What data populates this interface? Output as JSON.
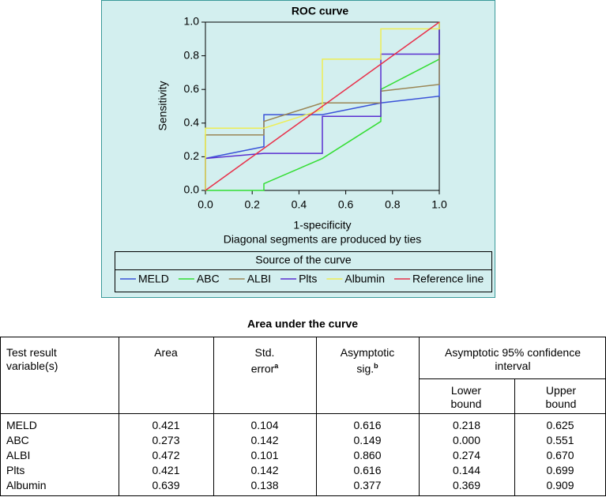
{
  "chart_data": {
    "type": "line",
    "title": "ROC curve",
    "x_label": "1-specificity",
    "y_label": "Sensitivity",
    "note": "Diagonal segments are produced by ties",
    "legend_title": "Source of the curve",
    "legend": "bottom",
    "xlim": [
      0,
      1
    ],
    "ylim": [
      0,
      1
    ],
    "xticks": [
      {
        "value": 0,
        "label": "0.0"
      },
      {
        "value": 0.2,
        "label": "0.2"
      },
      {
        "value": 0.4,
        "label": "0.4"
      },
      {
        "value": 0.6,
        "label": "0.6"
      },
      {
        "value": 0.8,
        "label": "0.8"
      },
      {
        "value": 1,
        "label": "1.0"
      }
    ],
    "yticks": [
      {
        "value": 0,
        "label": "0.0"
      },
      {
        "value": 0.2,
        "label": "0.2"
      },
      {
        "value": 0.4,
        "label": "0.4"
      },
      {
        "value": 0.6,
        "label": "0.6"
      },
      {
        "value": 0.8,
        "label": "0.8"
      },
      {
        "value": 1,
        "label": "1.0"
      }
    ],
    "series": [
      {
        "name": "MELD",
        "color": "#3a52d8",
        "x": [
          0,
          0,
          0.25,
          0.25,
          0.5,
          0.75,
          1,
          1
        ],
        "values": [
          0,
          0.19,
          0.26,
          0.45,
          0.45,
          0.52,
          0.56,
          1
        ]
      },
      {
        "name": "ABC",
        "color": "#33dd33",
        "x": [
          0,
          0.25,
          0.25,
          0.5,
          0.75,
          0.75,
          1,
          1
        ],
        "values": [
          0,
          0,
          0.04,
          0.19,
          0.41,
          0.6,
          0.78,
          1
        ]
      },
      {
        "name": "ALBI",
        "color": "#9a8655",
        "x": [
          0,
          0,
          0.25,
          0.25,
          0.5,
          0.75,
          0.75,
          1,
          1
        ],
        "values": [
          0,
          0.33,
          0.33,
          0.41,
          0.52,
          0.52,
          0.59,
          0.63,
          1
        ]
      },
      {
        "name": "Plts",
        "color": "#5a2ed0",
        "x": [
          0,
          0,
          0.25,
          0.5,
          0.5,
          0.75,
          0.75,
          1,
          1
        ],
        "values": [
          0,
          0.19,
          0.22,
          0.22,
          0.44,
          0.44,
          0.81,
          0.81,
          1
        ]
      },
      {
        "name": "Albumin",
        "color": "#eeee55",
        "x": [
          0,
          0,
          0.25,
          0.5,
          0.5,
          0.75,
          0.75,
          1,
          1
        ],
        "values": [
          0,
          0.37,
          0.37,
          0.48,
          0.78,
          0.78,
          0.96,
          0.96,
          1
        ]
      },
      {
        "name": "Reference line",
        "color": "#e8304a",
        "x": [
          0,
          1
        ],
        "values": [
          0,
          1
        ]
      }
    ]
  },
  "table": {
    "title": "Area under the curve",
    "headers": [
      "Test result variable(s)",
      "Area",
      "Std. error",
      "Asymptotic sig.",
      "Asymptotic 95% confidence interval",
      "Lower bound",
      "Upper bound"
    ],
    "header_notes": {
      "std_error": "a",
      "sig": "b"
    },
    "rows": [
      [
        "MELD",
        "0.421",
        "0.104",
        "0.616",
        "0.218",
        "0.625"
      ],
      [
        "ABC",
        "0.273",
        "0.142",
        "0.149",
        "0.000",
        "0.551"
      ],
      [
        "ALBI",
        "0.472",
        "0.101",
        "0.860",
        "0.274",
        "0.670"
      ],
      [
        "Plts",
        "0.421",
        "0.142",
        "0.616",
        "0.144",
        "0.699"
      ],
      [
        "Albumin",
        "0.639",
        "0.138",
        "0.377",
        "0.369",
        "0.909"
      ]
    ]
  }
}
